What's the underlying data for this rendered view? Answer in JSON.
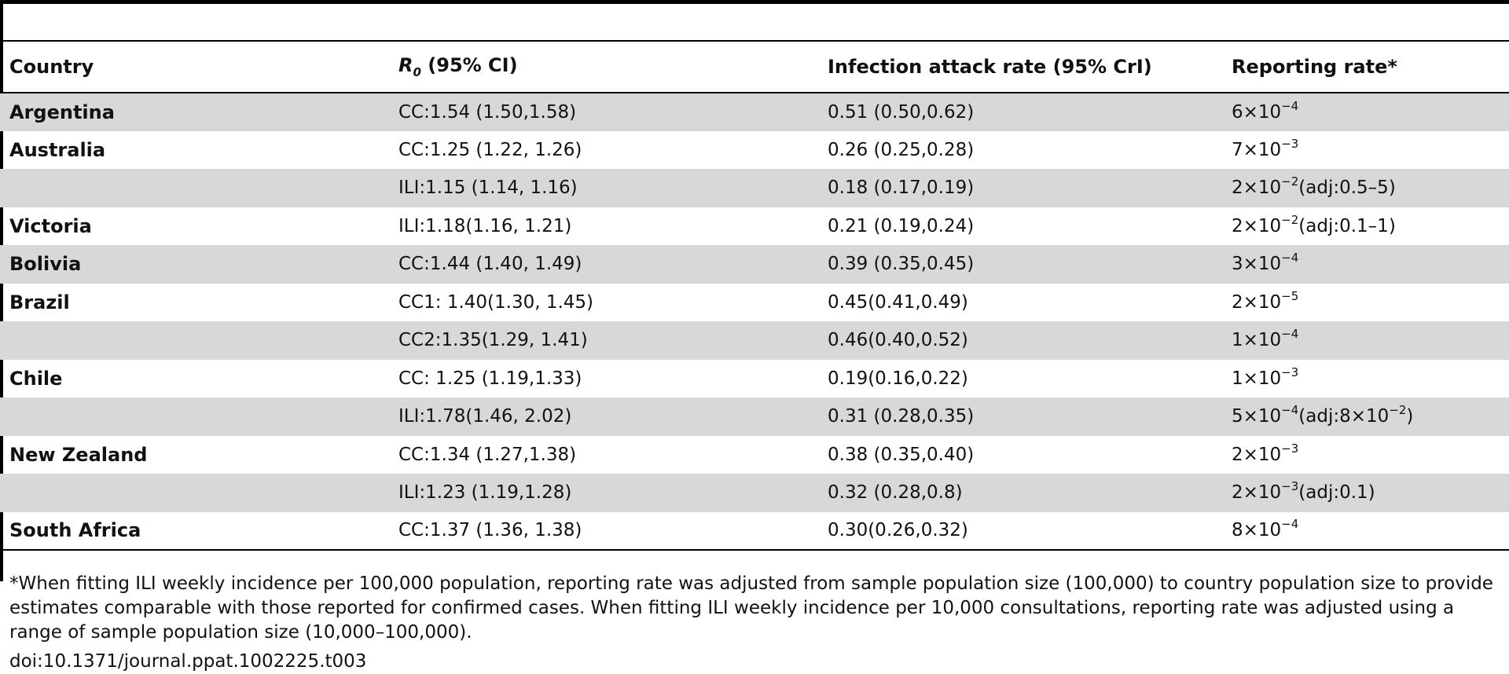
{
  "header": {
    "country": "Country",
    "r0_symbol": "R",
    "r0_sub": "0",
    "r0_rest": " (95% CI)",
    "attack": "Infection attack rate (95% CrI)",
    "reporting": "Reporting rate*"
  },
  "rows": [
    {
      "country": "Argentina",
      "r0": "CC:1.54 (1.50,1.58)",
      "attack": "0.51 (0.50,0.62)",
      "rep_base": "6×10",
      "rep_exp": "−4",
      "rep_tail": ""
    },
    {
      "country": "Australia",
      "r0": "CC:1.25 (1.22, 1.26)",
      "attack": "0.26 (0.25,0.28)",
      "rep_base": "7×10",
      "rep_exp": "−3",
      "rep_tail": ""
    },
    {
      "country": "",
      "r0": "ILI:1.15 (1.14, 1.16)",
      "attack": "0.18 (0.17,0.19)",
      "rep_base": "2×10",
      "rep_exp": "−2",
      "rep_tail": "(adj:0.5–5)"
    },
    {
      "country": "Victoria",
      "r0": "ILI:1.18(1.16, 1.21)",
      "attack": "0.21 (0.19,0.24)",
      "rep_base": "2×10",
      "rep_exp": "−2",
      "rep_tail": "(adj:0.1–1)"
    },
    {
      "country": "Bolivia",
      "r0": "CC:1.44 (1.40, 1.49)",
      "attack": "0.39 (0.35,0.45)",
      "rep_base": "3×10",
      "rep_exp": "−4",
      "rep_tail": ""
    },
    {
      "country": "Brazil",
      "r0": "CC1: 1.40(1.30, 1.45)",
      "attack": "0.45(0.41,0.49)",
      "rep_base": "2×10",
      "rep_exp": "−5",
      "rep_tail": ""
    },
    {
      "country": "",
      "r0": "CC2:1.35(1.29, 1.41)",
      "attack": "0.46(0.40,0.52)",
      "rep_base": "1×10",
      "rep_exp": "−4",
      "rep_tail": ""
    },
    {
      "country": "Chile",
      "r0": "CC: 1.25 (1.19,1.33)",
      "attack": "0.19(0.16,0.22)",
      "rep_base": "1×10",
      "rep_exp": "−3",
      "rep_tail": ""
    },
    {
      "country": "",
      "r0": "ILI:1.78(1.46, 2.02)",
      "attack": "0.31 (0.28,0.35)",
      "rep_base": "5×10",
      "rep_exp": "−4",
      "rep_tail": "(adj:8×10",
      "rep_tail_exp": "−2",
      "rep_tail_end": ")"
    },
    {
      "country": "New Zealand",
      "r0": "CC:1.34 (1.27,1.38)",
      "attack": "0.38 (0.35,0.40)",
      "rep_base": "2×10",
      "rep_exp": "−3",
      "rep_tail": ""
    },
    {
      "country": "",
      "r0": "ILI:1.23 (1.19,1.28)",
      "attack": "0.32 (0.28,0.8)",
      "rep_base": "2×10",
      "rep_exp": "−3",
      "rep_tail": "(adj:0.1)"
    },
    {
      "country": "South Africa",
      "r0": "CC:1.37 (1.36, 1.38)",
      "attack": "0.30(0.26,0.32)",
      "rep_base": "8×10",
      "rep_exp": "−4",
      "rep_tail": ""
    }
  ],
  "footnote": "*When fitting ILI weekly incidence per 100,000 population, reporting rate was adjusted from sample population size (100,000) to country population size to provide estimates comparable with those reported for confirmed cases. When fitting ILI weekly incidence per 10,000 consultations, reporting rate was adjusted using a range of sample population size (10,000–100,000).",
  "doi": "doi:10.1371/journal.ppat.1002225.t003"
}
